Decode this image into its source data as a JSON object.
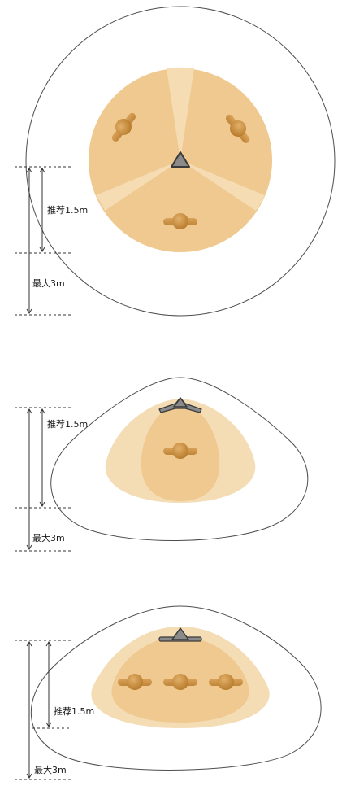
{
  "diagrams": [
    {
      "id": "panel-1",
      "recommended_label": "推荐1.5m",
      "max_label": "最大3m",
      "people_count": 3
    },
    {
      "id": "panel-2",
      "recommended_label": "推荐1.5m",
      "max_label": "最大3m",
      "people_count": 1
    },
    {
      "id": "panel-3",
      "recommended_label": "推荐1.5m",
      "max_label": "最大3m",
      "people_count": 3
    }
  ],
  "colors": {
    "zone_inner": "#efc98f",
    "zone_outer": "#f4dcb4",
    "zone_light": "#f8e6c9",
    "person": "#c98f3f",
    "person_light": "#d9a55c",
    "device": "#8a8a8a",
    "outline": "#4d4d4d"
  },
  "icons": [
    "person-icon",
    "microphone-device-icon"
  ]
}
